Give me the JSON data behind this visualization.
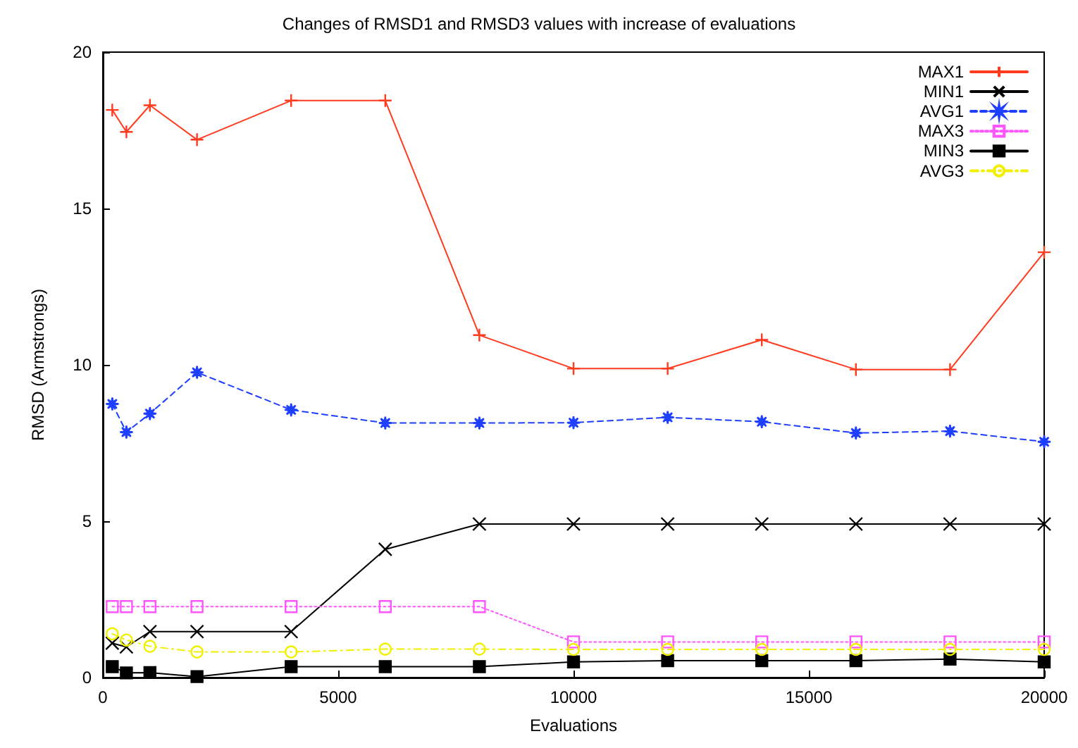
{
  "chart_data": {
    "type": "line",
    "title": "Changes of RMSD1 and RMSD3 values with increase of evaluations",
    "xlabel": "Evaluations",
    "ylabel": "RMSD (Armstrongs)",
    "x": [
      200,
      500,
      1000,
      2000,
      4000,
      6000,
      8000,
      10000,
      12000,
      14000,
      16000,
      18000,
      20000
    ],
    "xlim": [
      0,
      20000
    ],
    "xticks": [
      0,
      5000,
      10000,
      15000,
      20000
    ],
    "ylim": [
      0,
      20
    ],
    "yticks": [
      0,
      5,
      10,
      15,
      20
    ],
    "grid": false,
    "legend": "top right",
    "series": [
      {
        "name": "MAX1",
        "color": "#ff3b1f",
        "marker": "cross",
        "line_style": "solid",
        "values": [
          18.15,
          17.45,
          18.3,
          17.2,
          18.45,
          18.45,
          10.95,
          9.88,
          9.88,
          10.8,
          9.85,
          9.85,
          13.6
        ]
      },
      {
        "name": "MIN1",
        "color": "#000000",
        "marker": "x",
        "line_style": "solid",
        "values": [
          1.1,
          0.98,
          1.47,
          1.47,
          1.47,
          4.1,
          4.91,
          4.91,
          4.91,
          4.91,
          4.91,
          4.91,
          4.91
        ]
      },
      {
        "name": "AVG1",
        "color": "#1f3fff",
        "marker": "star",
        "line_style": "dashed",
        "values": [
          8.75,
          7.85,
          8.44,
          9.76,
          8.56,
          8.14,
          8.14,
          8.15,
          8.32,
          8.18,
          7.82,
          7.88,
          7.54
        ]
      },
      {
        "name": "MAX3",
        "color": "#ff55ff",
        "marker": "square",
        "line_style": "dotted",
        "values": [
          2.27,
          2.27,
          2.27,
          2.27,
          2.27,
          2.27,
          2.27,
          1.14,
          1.14,
          1.14,
          1.14,
          1.14,
          1.14
        ]
      },
      {
        "name": "MIN3",
        "color": "#000000",
        "marker": "square",
        "line_style": "solid",
        "values": [
          0.35,
          0.15,
          0.16,
          0.03,
          0.35,
          0.35,
          0.35,
          0.5,
          0.54,
          0.54,
          0.54,
          0.59,
          0.5
        ]
      },
      {
        "name": "AVG3",
        "color": "#f0f000",
        "marker": "circle",
        "line_style": "dashdot",
        "values": [
          1.4,
          1.2,
          1.0,
          0.82,
          0.82,
          0.91,
          0.91,
          0.9,
          0.9,
          0.9,
          0.9,
          0.9,
          0.9
        ]
      }
    ]
  }
}
